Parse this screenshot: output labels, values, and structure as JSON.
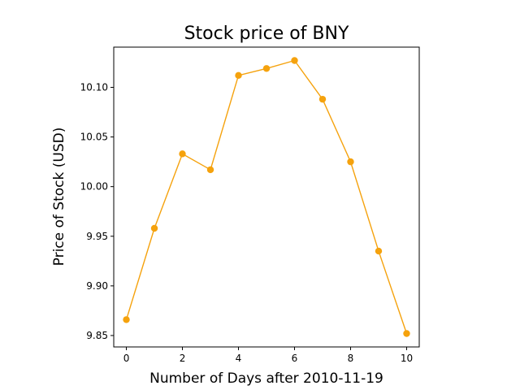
{
  "chart_data": {
    "type": "line",
    "title": "Stock price of BNY",
    "xlabel": "Number of Days after 2010-11-19",
    "ylabel": "Price of Stock (USD)",
    "x": [
      0,
      1,
      2,
      3,
      4,
      5,
      6,
      7,
      8,
      9,
      10
    ],
    "series": [
      {
        "values": [
          9.866,
          9.958,
          10.033,
          10.017,
          10.112,
          10.119,
          10.127,
          10.088,
          10.025,
          9.935,
          9.852
        ],
        "color": "#f5a20d",
        "marker": "circle"
      }
    ],
    "xlim": [
      -0.45,
      10.45
    ],
    "ylim": [
      9.8385,
      10.1405
    ],
    "xticks": [
      0,
      2,
      4,
      6,
      8,
      10
    ],
    "xtick_labels": [
      "0",
      "2",
      "4",
      "6",
      "8",
      "10"
    ],
    "yticks": [
      9.85,
      9.9,
      9.95,
      10.0,
      10.05,
      10.1
    ],
    "ytick_labels": [
      "9.85",
      "9.90",
      "9.95",
      "10.00",
      "10.05",
      "10.10"
    ],
    "grid": false,
    "legend": "none"
  }
}
